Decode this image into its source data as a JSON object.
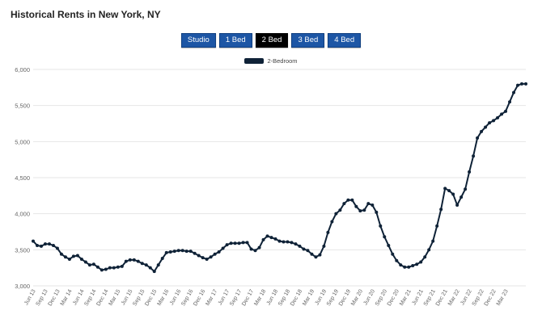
{
  "title": "Historical Rents in New York, NY",
  "tabs": [
    {
      "label": "Studio",
      "active": false
    },
    {
      "label": "1 Bed",
      "active": false
    },
    {
      "label": "2 Bed",
      "active": true
    },
    {
      "label": "3 Bed",
      "active": false
    },
    {
      "label": "4 Bed",
      "active": false
    }
  ],
  "colors": {
    "line": "#0f2237",
    "grid": "#e6e6e6",
    "tab_active": "#000000",
    "tab": "#1d56a5"
  },
  "chart_data": {
    "type": "line",
    "title": "",
    "xlabel": "",
    "ylabel": "",
    "ylim": [
      3000,
      6000
    ],
    "yticks": [
      "3,000",
      "3,500",
      "4,000",
      "4,500",
      "5,000",
      "5,500",
      "6,000"
    ],
    "ytick_values": [
      3000,
      3500,
      4000,
      4500,
      5000,
      5500,
      6000
    ],
    "grid": true,
    "legend_position": "top-center",
    "x_tick_labels": [
      "Jun 13",
      "Sep 13",
      "Dec 13",
      "Mar 14",
      "Jun 14",
      "Sep 14",
      "Dec 14",
      "Mar 15",
      "Jun 15",
      "Sep 15",
      "Dec 15",
      "Mar 16",
      "Jun 16",
      "Sep 16",
      "Dec 16",
      "Mar 17",
      "Jun 17",
      "Sep 17",
      "Dec 17",
      "Mar 18",
      "Jun 18",
      "Sep 18",
      "Dec 18",
      "Mar 19",
      "Jun 19",
      "Sep 19",
      "Dec 19",
      "Mar 20",
      "Jun 20",
      "Sep 20",
      "Dec 20",
      "Mar 21",
      "Jun 21",
      "Sep 21",
      "Dec 21",
      "Mar 22",
      "Jun 22",
      "Sep 22",
      "Dec 22",
      "Mar 23"
    ],
    "series": [
      {
        "name": "2-Bedroom",
        "values": [
          3620,
          3560,
          3550,
          3580,
          3580,
          3560,
          3520,
          3440,
          3400,
          3370,
          3410,
          3420,
          3370,
          3330,
          3290,
          3300,
          3260,
          3220,
          3230,
          3250,
          3250,
          3260,
          3270,
          3340,
          3360,
          3360,
          3340,
          3310,
          3290,
          3250,
          3200,
          3290,
          3380,
          3460,
          3470,
          3480,
          3490,
          3490,
          3480,
          3480,
          3450,
          3420,
          3390,
          3370,
          3400,
          3440,
          3470,
          3520,
          3570,
          3590,
          3590,
          3590,
          3600,
          3600,
          3510,
          3490,
          3530,
          3640,
          3690,
          3670,
          3650,
          3620,
          3610,
          3610,
          3600,
          3580,
          3550,
          3510,
          3490,
          3440,
          3400,
          3430,
          3550,
          3740,
          3890,
          4000,
          4050,
          4140,
          4190,
          4190,
          4100,
          4040,
          4050,
          4140,
          4120,
          4020,
          3830,
          3680,
          3560,
          3440,
          3350,
          3290,
          3260,
          3260,
          3280,
          3300,
          3330,
          3400,
          3500,
          3620,
          3830,
          4060,
          4350,
          4320,
          4270,
          4120,
          4230,
          4340,
          4580,
          4800,
          5050,
          5140,
          5200,
          5260,
          5290,
          5330,
          5380,
          5420,
          5550,
          5680,
          5780,
          5800,
          5800
        ]
      }
    ]
  }
}
